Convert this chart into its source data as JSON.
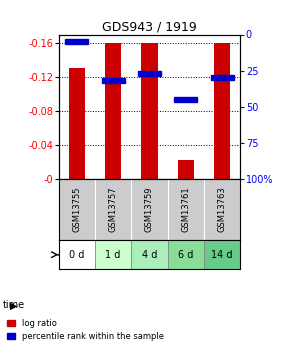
{
  "title": "GDS943 / 1919",
  "samples": [
    "GSM13755",
    "GSM13757",
    "GSM13759",
    "GSM13761",
    "GSM13763"
  ],
  "time_labels": [
    "0 d",
    "1 d",
    "4 d",
    "6 d",
    "14 d"
  ],
  "time_colors": [
    "#ffffff",
    "#ccffcc",
    "#aaeebb",
    "#88dd99",
    "#66cc88"
  ],
  "log_ratios": [
    -0.13,
    -0.16,
    -0.16,
    -0.022,
    -0.16
  ],
  "percentile_ranks": [
    5.0,
    32.0,
    27.0,
    45.0,
    30.0
  ],
  "bar_color": "#cc0000",
  "percentile_color": "#0000cc",
  "ymin": -0.17,
  "ymax": 0.0,
  "yticks_left": [
    0.0,
    -0.04,
    -0.08,
    -0.12,
    -0.16
  ],
  "ytick_labels_left": [
    "-0",
    "-0.04",
    "-0.08",
    "-0.12",
    "-0.16"
  ],
  "yticks_right_vals": [
    0,
    25,
    50,
    75,
    100
  ],
  "ytick_labels_right": [
    "0",
    "25",
    "50",
    "75",
    "100%"
  ],
  "bar_width": 0.45,
  "sample_bg_color": "#cccccc",
  "plot_bg_color": "#ffffff",
  "legend_log_label": "log ratio",
  "legend_pct_label": "percentile rank within the sample"
}
